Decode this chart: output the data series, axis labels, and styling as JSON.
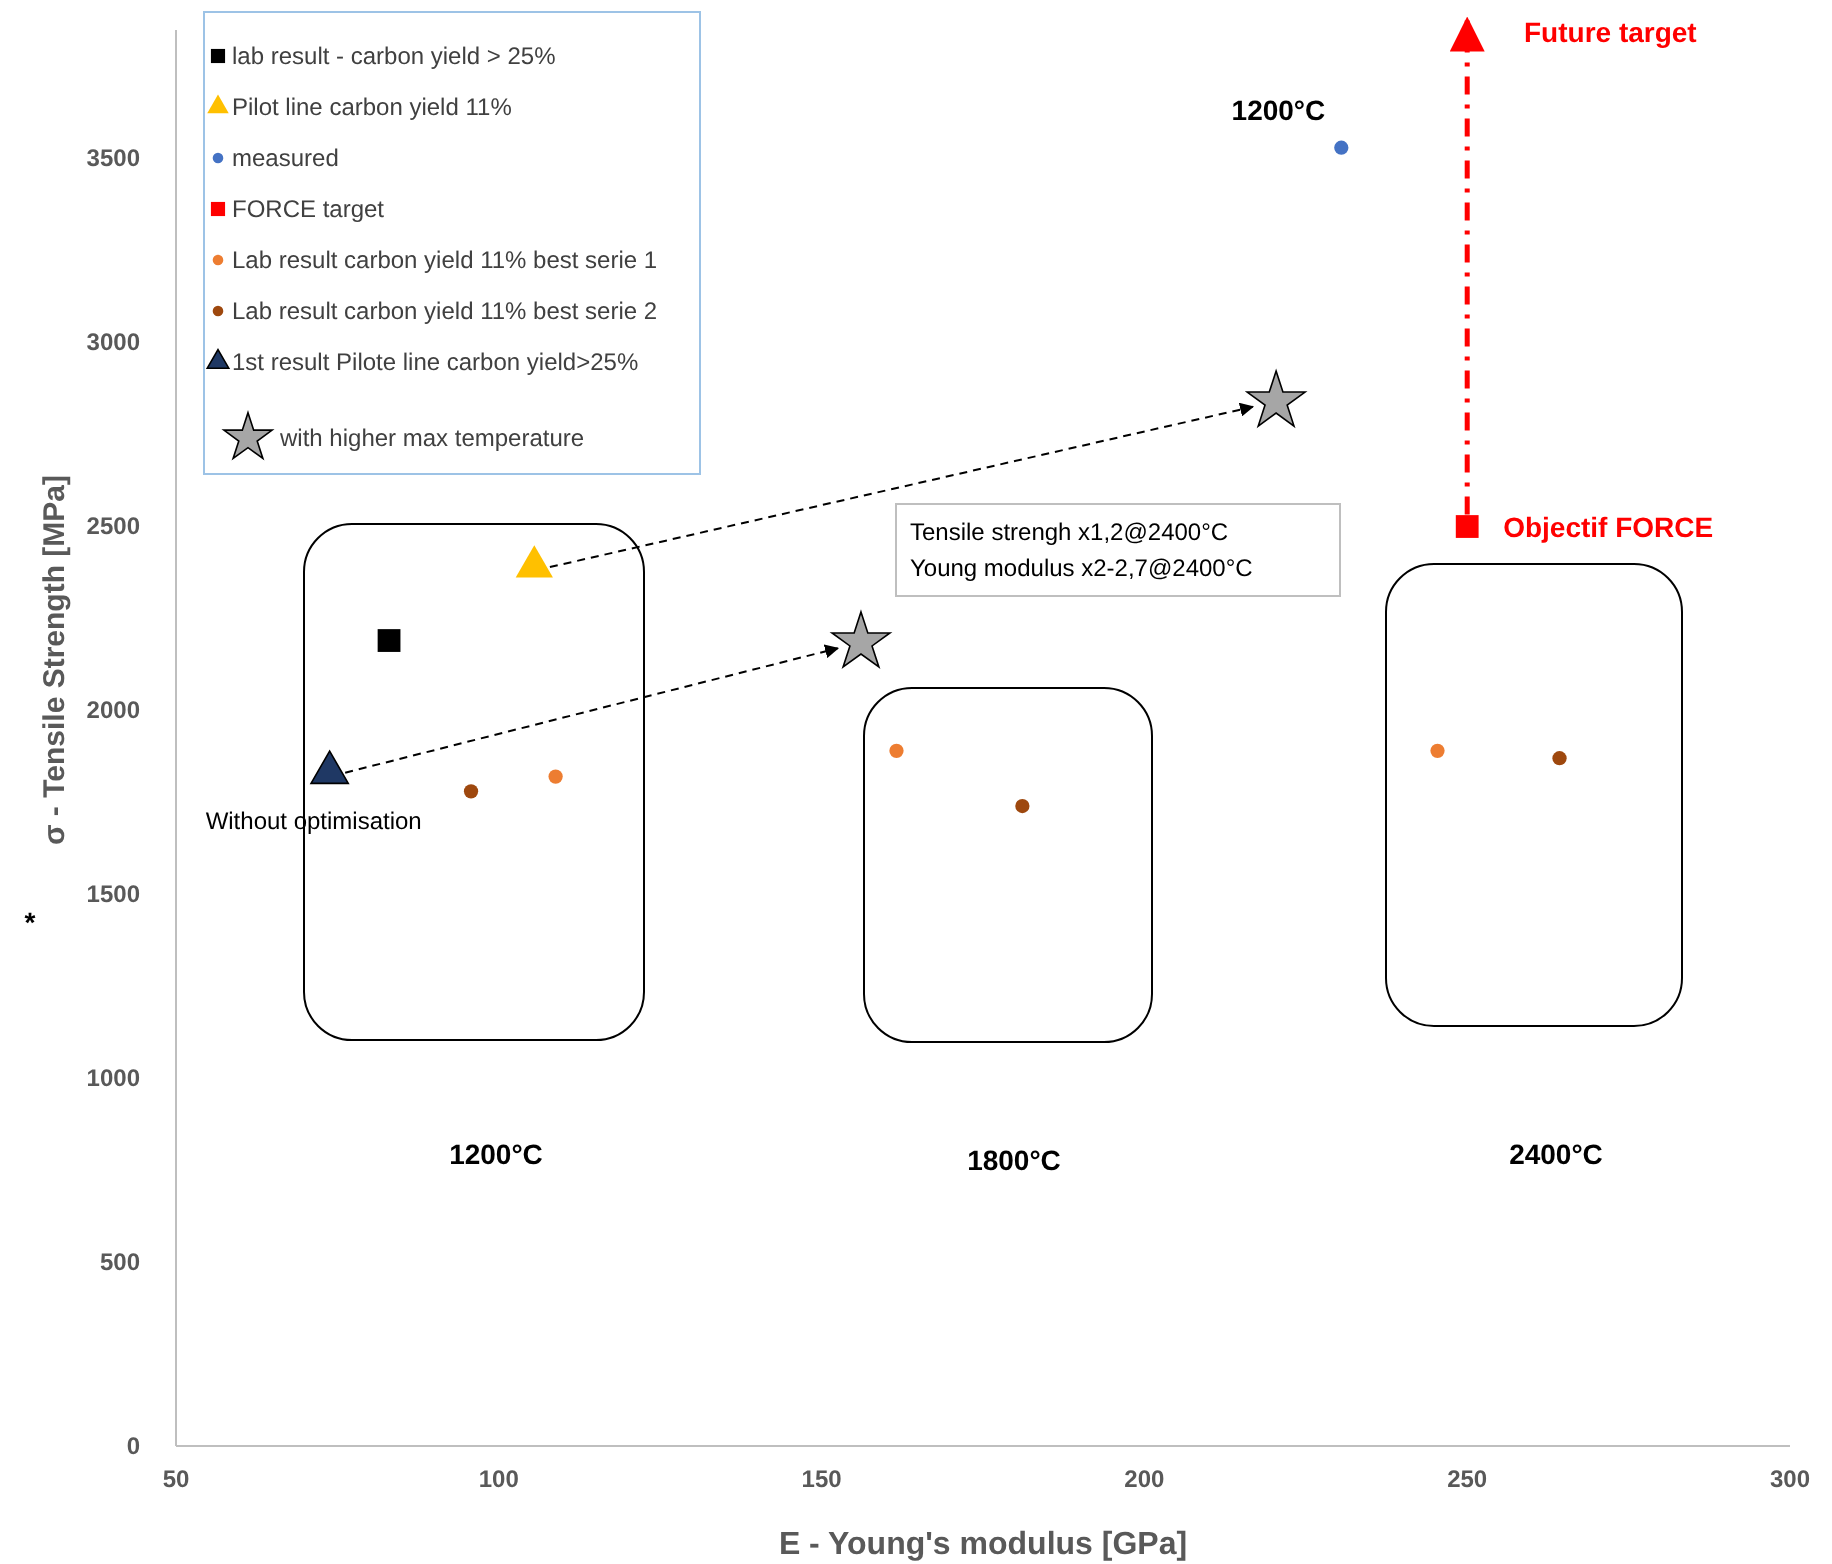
{
  "chart_data": {
    "type": "scatter",
    "xlabel": "E - Young's modulus [GPa]",
    "ylabel": "σ - Tensile Strength [MPa]",
    "xlim": [
      50,
      300
    ],
    "xticks": [
      50,
      100,
      150,
      200,
      250,
      300
    ],
    "ylim": [
      0,
      3850
    ],
    "yticks": [
      0,
      500,
      1000,
      1500,
      2000,
      2500,
      3000,
      3500
    ],
    "grid": false,
    "legend": "top left",
    "series": [
      {
        "name": "lab result - carbon yield > 25%",
        "color": "#000000",
        "marker": "square",
        "x": [
          83
        ],
        "values": [
          2190
        ]
      },
      {
        "name": "Pilot line carbon yield 11%",
        "color": "#ffc000",
        "marker": "triangle",
        "x": [
          105.5
        ],
        "values": [
          2380
        ]
      },
      {
        "name": "measured",
        "color": "#4472c4",
        "marker": "circle",
        "x": [
          230.5
        ],
        "values": [
          3530
        ]
      },
      {
        "name": "FORCE target",
        "color": "#ff0000",
        "marker": "square",
        "x": [
          250
        ],
        "values": [
          2500
        ]
      },
      {
        "name": "Lab result carbon yield 11% best serie 1",
        "color": "#ed7d31",
        "marker": "circle",
        "x": [
          108.8,
          161.6,
          245.4
        ],
        "values": [
          1820,
          1890,
          1890
        ]
      },
      {
        "name": "Lab result carbon yield 11% best serie 2",
        "color": "#9e480e",
        "marker": "circle",
        "x": [
          95.7,
          181.1,
          264.3
        ],
        "values": [
          1780,
          1740,
          1870
        ]
      },
      {
        "name": "1st result Pilote line carbon yield>25%",
        "color": "#1f3864",
        "marker": "triangle",
        "x": [
          73.8
        ],
        "values": [
          1820
        ]
      },
      {
        "name": "with higher max temperature",
        "color": "#a6a6a6",
        "marker": "star",
        "x": [
          220.4,
          156.1
        ],
        "values": [
          2840,
          2185
        ]
      }
    ],
    "annotations": [
      {
        "text": "Without optimisation",
        "x": 73.8,
        "y": 1820
      },
      {
        "text": "Objectif FORCE",
        "x": 250,
        "y": 2500
      },
      {
        "text": "1200°C",
        "x": 230.5,
        "y": 3530
      },
      "Future target",
      "Tensile strengh x1,2@2400°C\nYoung modulus x2-2,7@2400°C",
      "1200°C",
      "1800°C",
      "2400°C",
      "*"
    ]
  }
}
